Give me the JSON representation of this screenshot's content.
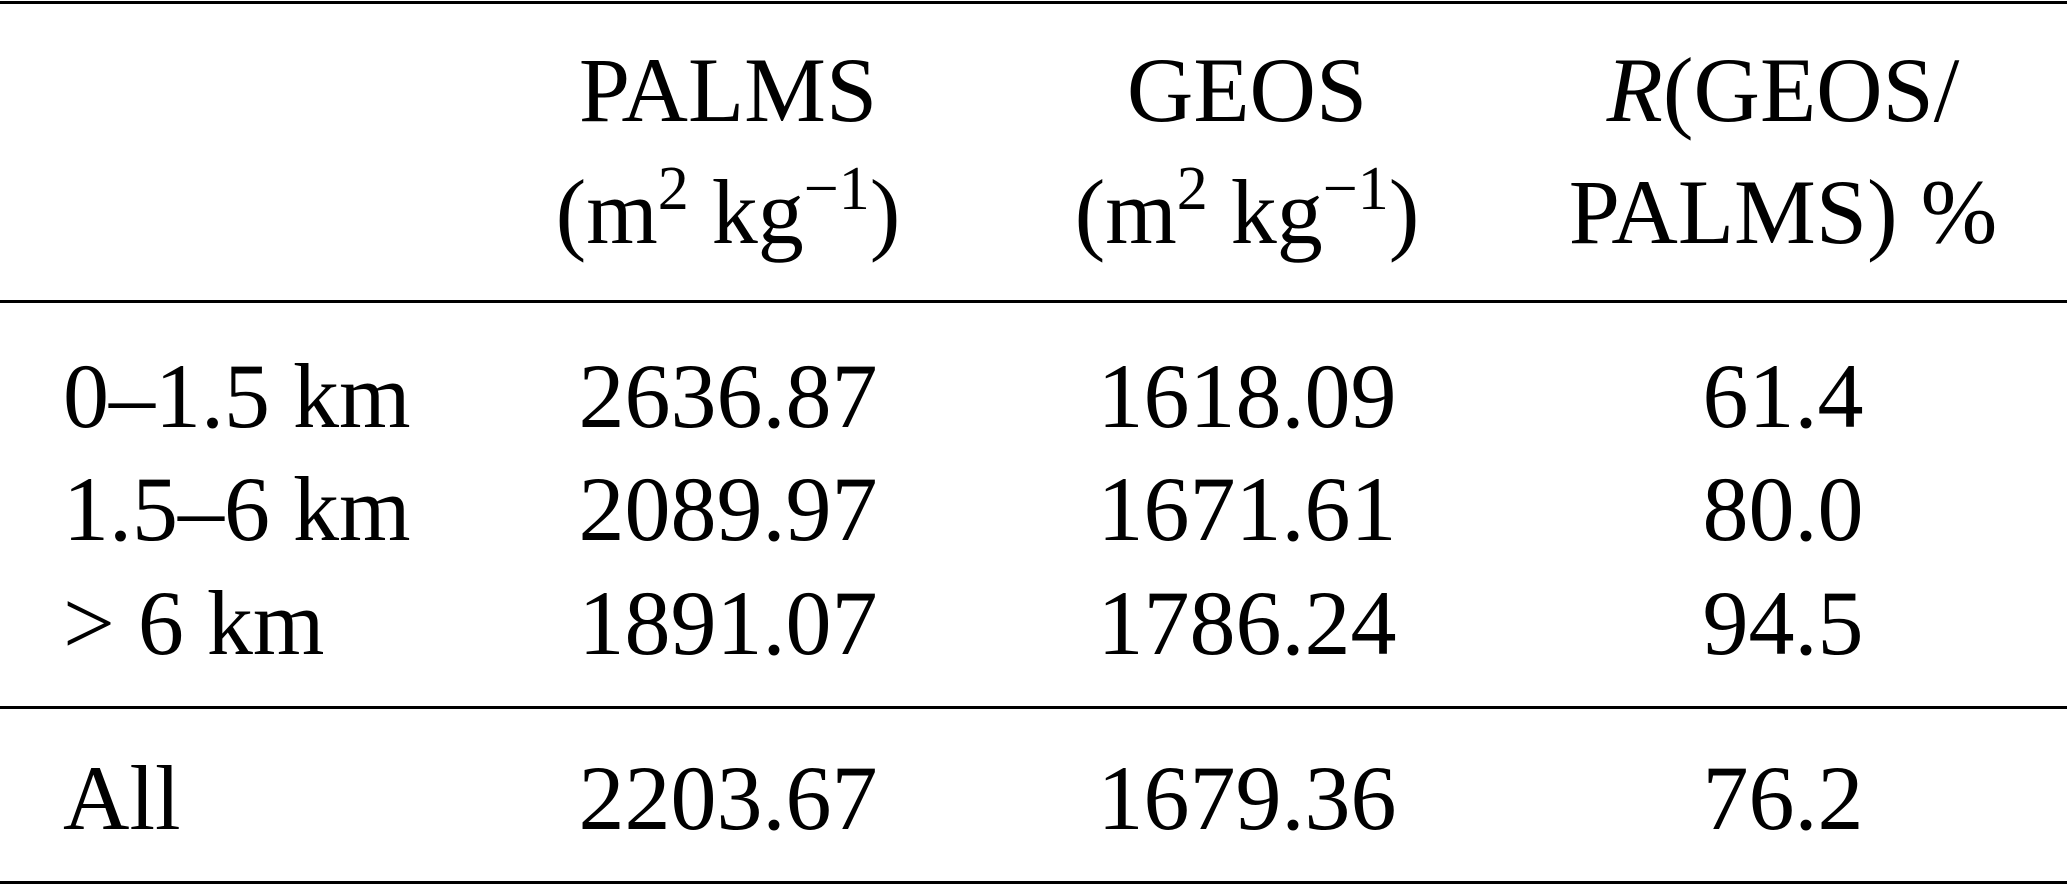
{
  "table": {
    "headers": [
      {
        "line1": "",
        "line2": ""
      },
      {
        "line1": "PALMS",
        "unit_open": "(m",
        "unit_exp1": "2",
        "unit_mid": " kg",
        "unit_exp2": "−1",
        "unit_close": ")"
      },
      {
        "line1": "GEOS",
        "unit_open": "(m",
        "unit_exp1": "2",
        "unit_mid": " kg",
        "unit_exp2": "−1",
        "unit_close": ")"
      },
      {
        "line1_italic": "R",
        "line1": "(GEOS/",
        "line2": "PALMS) %"
      }
    ],
    "rows": [
      {
        "label": "0–1.5 km",
        "palms": "2636.87",
        "geos": "1618.09",
        "ratio": "61.4"
      },
      {
        "label": "1.5–6 km",
        "palms": "2089.97",
        "geos": "1671.61",
        "ratio": "80.0"
      },
      {
        "label": "> 6 km",
        "palms": "1891.07",
        "geos": "1786.24",
        "ratio": "94.5"
      }
    ],
    "total": {
      "label": "All",
      "palms": "2203.67",
      "geos": "1679.36",
      "ratio": "76.2"
    }
  }
}
